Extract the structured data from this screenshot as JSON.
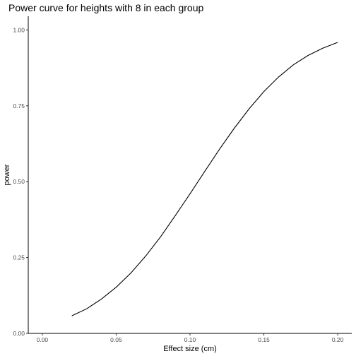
{
  "chart_data": {
    "type": "line",
    "title": "Power curve for heights with 8 in each group",
    "xlabel": "Effect size (cm)",
    "ylabel": "power",
    "xlim": [
      -0.0095,
      0.2095
    ],
    "ylim": [
      0.0,
      1.045
    ],
    "x_ticks": [
      0.0,
      0.05,
      0.1,
      0.15,
      0.2
    ],
    "x_tick_labels": [
      "0.00",
      "0.05",
      "0.10",
      "0.15",
      "0.20"
    ],
    "y_ticks": [
      0.0,
      0.25,
      0.5,
      0.75,
      1.0
    ],
    "y_tick_labels": [
      "0.00",
      "0.25",
      "0.50",
      "0.75",
      "1.00"
    ],
    "grid": false,
    "series": [
      {
        "color": "#000000",
        "x": [
          0.02,
          0.03,
          0.04,
          0.05,
          0.06,
          0.07,
          0.08,
          0.09,
          0.1,
          0.11,
          0.12,
          0.13,
          0.14,
          0.15,
          0.16,
          0.17,
          0.18,
          0.19,
          0.2
        ],
        "y": [
          0.058,
          0.081,
          0.113,
          0.152,
          0.199,
          0.255,
          0.318,
          0.388,
          0.46,
          0.534,
          0.607,
          0.676,
          0.74,
          0.797,
          0.845,
          0.885,
          0.916,
          0.94,
          0.959
        ]
      }
    ]
  }
}
